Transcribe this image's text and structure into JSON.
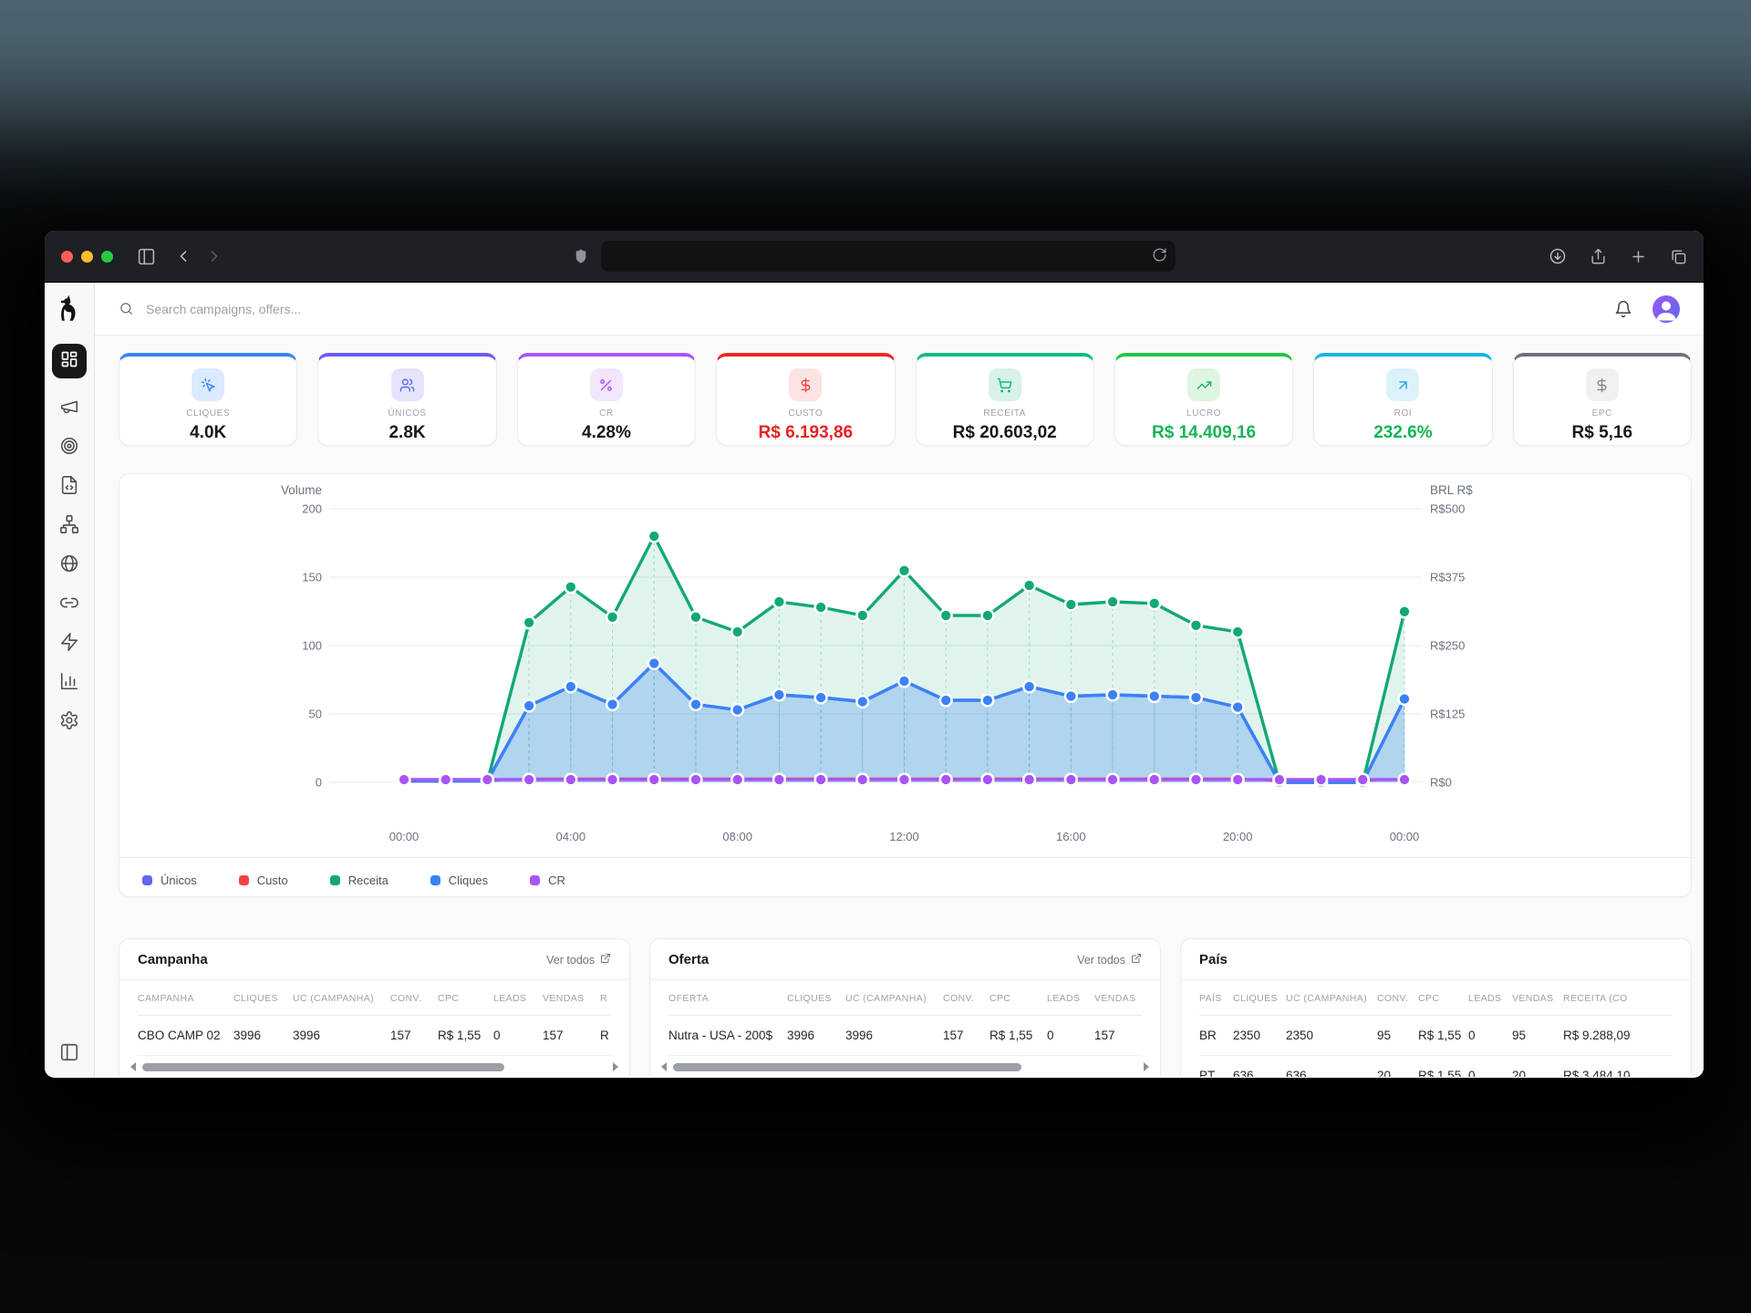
{
  "browser": {
    "traffic_colors": {
      "close": "#ff5f57",
      "minimize": "#febc2e",
      "zoom": "#28c840"
    },
    "controls": [
      "sidebar-toggle-icon",
      "back-icon",
      "forward-icon",
      "shield-icon",
      "address-bar",
      "reload-icon",
      "download-icon",
      "share-icon",
      "new-tab-icon",
      "tabs-icon"
    ],
    "address_value": ""
  },
  "topbar": {
    "search_placeholder": "Search campaigns, offers...",
    "icons": [
      "search-icon",
      "bell-icon",
      "user-avatar"
    ]
  },
  "sidebar": {
    "logo_icon": "dog-logo",
    "items": [
      {
        "name": "dashboard",
        "icon": "layout-dashboard-icon",
        "active": true
      },
      {
        "name": "campaigns",
        "icon": "megaphone-icon",
        "active": false
      },
      {
        "name": "offers",
        "icon": "target-icon",
        "active": false
      },
      {
        "name": "landers",
        "icon": "file-code-icon",
        "active": false
      },
      {
        "name": "flows",
        "icon": "sitemap-icon",
        "active": false
      },
      {
        "name": "domains",
        "icon": "globe-icon",
        "active": false
      },
      {
        "name": "links",
        "icon": "link-icon",
        "active": false
      },
      {
        "name": "automation",
        "icon": "zap-icon",
        "active": false
      },
      {
        "name": "reports",
        "icon": "bar-chart-icon",
        "active": false
      },
      {
        "name": "settings",
        "icon": "gear-icon",
        "active": false
      }
    ],
    "collapse_icon": "panel-left-icon"
  },
  "kpis": [
    {
      "label": "CLIQUES",
      "value": "4.0K",
      "accent": "#3b82f6",
      "icon": "cursor-click-icon",
      "chip_bg": "#dbeafe",
      "chip_fg": "#3b82f6",
      "value_color": "#18181b"
    },
    {
      "label": "ÚNICOS",
      "value": "2.8K",
      "accent": "#6c5bf5",
      "icon": "users-icon",
      "chip_bg": "#e4e4fc",
      "chip_fg": "#6366f1",
      "value_color": "#18181b"
    },
    {
      "label": "CR",
      "value": "4.28%",
      "accent": "#a855f7",
      "icon": "percent-icon",
      "chip_bg": "#f2e6fd",
      "chip_fg": "#a855f7",
      "value_color": "#18181b"
    },
    {
      "label": "CUSTO",
      "value": "R$ 6.193,86",
      "accent": "#ed2727",
      "icon": "dollar-icon",
      "chip_bg": "#fde4e4",
      "chip_fg": "#ef4444",
      "value_color": "#e52222"
    },
    {
      "label": "RECEITA",
      "value": "R$ 20.603,02",
      "accent": "#10b981",
      "icon": "cart-icon",
      "chip_bg": "#d7f2e6",
      "chip_fg": "#10b981",
      "value_color": "#18181b"
    },
    {
      "label": "LUCRO",
      "value": "R$ 14.409,16",
      "accent": "#25c348",
      "icon": "trending-up-icon",
      "chip_bg": "#def5e2",
      "chip_fg": "#22b45e",
      "value_color": "#17b355"
    },
    {
      "label": "ROI",
      "value": "232.6%",
      "accent": "#18b5e5",
      "icon": "arrow-up-right-icon",
      "chip_bg": "#dcf2fb",
      "chip_fg": "#21a8dc",
      "value_color": "#17b355"
    },
    {
      "label": "EPC",
      "value": "R$ 5,16",
      "accent": "#6e7178",
      "icon": "dollar-icon",
      "chip_bg": "#f0f0f1",
      "chip_fg": "#83878e",
      "value_color": "#18181b"
    }
  ],
  "chart_data": {
    "type": "line",
    "x": [
      "00:00",
      "01:00",
      "02:00",
      "03:00",
      "04:00",
      "05:00",
      "06:00",
      "07:00",
      "08:00",
      "09:00",
      "10:00",
      "11:00",
      "12:00",
      "13:00",
      "14:00",
      "15:00",
      "16:00",
      "17:00",
      "18:00",
      "19:00",
      "20:00",
      "21:00",
      "22:00",
      "23:00",
      "00:00"
    ],
    "x_tick_every": 4,
    "left_axis": {
      "title": "Volume",
      "min": 0,
      "max": 200,
      "ticks": [
        "0",
        "50",
        "100",
        "150",
        "200"
      ]
    },
    "right_axis": {
      "title": "BRL R$",
      "min": 0,
      "max": 500,
      "ticks": [
        "R$0",
        "R$125",
        "R$250",
        "R$375",
        "R$500"
      ]
    },
    "grid": true,
    "legend_position": "bottom",
    "series": [
      {
        "name": "Únicos",
        "color": "#6366f1",
        "axis": "left",
        "points": false,
        "area": false,
        "values": [
          1,
          1,
          1,
          56,
          70,
          57,
          87,
          57,
          53,
          64,
          62,
          59,
          74,
          60,
          60,
          70,
          63,
          64,
          63,
          62,
          55,
          0,
          0,
          0,
          61
        ]
      },
      {
        "name": "Custo",
        "color": "#ef4444",
        "axis": "right",
        "points": false,
        "area": false,
        "values": [
          2,
          2,
          2,
          7,
          7,
          7,
          7,
          7,
          7,
          7,
          7,
          7,
          7,
          7,
          7,
          7,
          7,
          7,
          7,
          7,
          7,
          2,
          2,
          2,
          7
        ]
      },
      {
        "name": "Receita",
        "color": "#12a874",
        "axis": "right",
        "points": true,
        "area": true,
        "area_opacity": 0.13,
        "values": [
          2,
          2,
          2,
          292,
          357,
          302,
          450,
          302,
          275,
          330,
          320,
          305,
          387,
          305,
          305,
          360,
          325,
          330,
          327,
          287,
          275,
          0,
          0,
          0,
          312
        ]
      },
      {
        "name": "Cliques",
        "color": "#3b82f6",
        "axis": "left",
        "points": true,
        "area": true,
        "area_opacity": 0.28,
        "values": [
          1,
          1,
          1,
          56,
          70,
          57,
          87,
          57,
          53,
          64,
          62,
          59,
          74,
          60,
          60,
          70,
          63,
          64,
          63,
          62,
          55,
          0,
          0,
          0,
          61
        ]
      },
      {
        "name": "CR",
        "color": "#a855f7",
        "axis": "left",
        "points": true,
        "area": false,
        "values": [
          2,
          2,
          2,
          2,
          2,
          2,
          2,
          2,
          2,
          2,
          2,
          2,
          2,
          2,
          2,
          2,
          2,
          2,
          2,
          2,
          2,
          2,
          2,
          2,
          2
        ]
      }
    ]
  },
  "tables": [
    {
      "title": "Campanha",
      "link": "Ver todos",
      "link_icon": "external-link-icon",
      "headers": [
        "CAMPANHA",
        "CLIQUES",
        "UC (CAMPANHA)",
        "CONV.",
        "CPC",
        "LEADS",
        "VENDAS",
        "R"
      ],
      "rows": [
        [
          "CBO CAMP 02",
          "3996",
          "3996",
          "157",
          "R$ 1,55",
          "0",
          "157",
          "R"
        ]
      ]
    },
    {
      "title": "Oferta",
      "link": "Ver todos",
      "link_icon": "external-link-icon",
      "headers": [
        "OFERTA",
        "CLIQUES",
        "UC (CAMPANHA)",
        "CONV.",
        "CPC",
        "LEADS",
        "VENDAS"
      ],
      "rows": [
        [
          "Nutra - USA - 200$",
          "3996",
          "3996",
          "157",
          "R$ 1,55",
          "0",
          "157"
        ]
      ]
    },
    {
      "title": "País",
      "link": null,
      "link_icon": null,
      "headers": [
        "PAÍS",
        "CLIQUES",
        "UC (CAMPANHA)",
        "CONV.",
        "CPC",
        "LEADS",
        "VENDAS",
        "RECEITA (CO"
      ],
      "rows": [
        [
          "BR",
          "2350",
          "2350",
          "95",
          "R$ 1,55",
          "0",
          "95",
          "R$ 9.288,09"
        ],
        [
          "PT",
          "636",
          "636",
          "20",
          "R$ 1,55",
          "0",
          "20",
          "R$ 3.484,10"
        ]
      ]
    }
  ]
}
